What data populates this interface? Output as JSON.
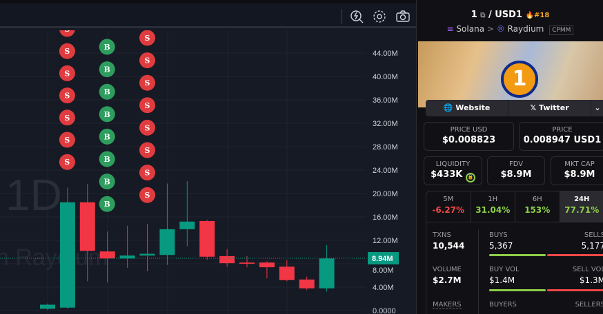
{
  "toolbar": {
    "icons": [
      "alert-search-icon",
      "gear-icon",
      "camera-icon"
    ]
  },
  "chart": {
    "watermark_interval": "1D",
    "watermark_source": "n Raydium",
    "y_ticks": [
      "44.00M",
      "40.00M",
      "36.00M",
      "32.00M",
      "28.00M",
      "24.00M",
      "20.00M",
      "16.00M",
      "12.00M",
      "8.00M",
      "4.00M",
      "0.0000"
    ],
    "current_price_label": "8.94M",
    "current_price": 8.94,
    "colors": {
      "up": "#089981",
      "down": "#f23645",
      "buy_marker": "#2e9e5e",
      "sell_marker": "#e03c3f",
      "background": "#161a25"
    }
  },
  "chart_data": {
    "type": "candlestick",
    "ylim": [
      0,
      46
    ],
    "candles": [
      {
        "o": 0.3,
        "h": 1.2,
        "l": 0.1,
        "c": 1.0
      },
      {
        "o": 0.5,
        "h": 21.0,
        "l": 0.3,
        "c": 18.5
      },
      {
        "o": 18.5,
        "h": 21.6,
        "l": 5.0,
        "c": 10.2
      },
      {
        "o": 10.1,
        "h": 13.5,
        "l": 4.8,
        "c": 8.9
      },
      {
        "o": 8.9,
        "h": 14.5,
        "l": 7.3,
        "c": 9.4
      },
      {
        "o": 9.4,
        "h": 14.8,
        "l": 6.7,
        "c": 9.7
      },
      {
        "o": 9.5,
        "h": 21.7,
        "l": 7.8,
        "c": 13.9
      },
      {
        "o": 13.9,
        "h": 22.1,
        "l": 11.0,
        "c": 15.2
      },
      {
        "o": 15.3,
        "h": 15.5,
        "l": 8.7,
        "c": 9.2
      },
      {
        "o": 9.3,
        "h": 10.5,
        "l": 7.5,
        "c": 8.1
      },
      {
        "o": 8.2,
        "h": 9.3,
        "l": 7.4,
        "c": 8.0
      },
      {
        "o": 8.2,
        "h": 8.4,
        "l": 5.5,
        "c": 7.4
      },
      {
        "o": 7.5,
        "h": 8.6,
        "l": 5.0,
        "c": 5.2
      },
      {
        "o": 5.3,
        "h": 5.8,
        "l": 3.5,
        "c": 3.8
      },
      {
        "o": 3.8,
        "h": 11.2,
        "l": 3.2,
        "c": 8.9
      }
    ],
    "markers": [
      {
        "candle": 1,
        "label": "S",
        "count": 7
      },
      {
        "candle": 3,
        "label": "B",
        "count": 8
      },
      {
        "candle": 5,
        "label": "S",
        "count": 8
      }
    ]
  },
  "pair": {
    "base": "1",
    "quote": "USD1",
    "sep": "/",
    "rank": "#18",
    "chain": "Solana",
    "dex": "Raydium",
    "pool_type": "CPMM",
    "chevron": ">",
    "coin_symbol": "1"
  },
  "links": {
    "website": "Website",
    "twitter": "Twitter"
  },
  "price": {
    "usd_label": "PRICE USD",
    "usd": "$0.008823",
    "native_label": "PRICE",
    "native": "0.008947 USD1"
  },
  "metrics": {
    "liquidity_label": "LIQUIDITY",
    "liquidity": "$433K",
    "fdv_label": "FDV",
    "fdv": "$8.9M",
    "mcap_label": "MKT CAP",
    "mcap": "$8.9M"
  },
  "tabs": [
    {
      "label": "5M",
      "value": "-6.27%",
      "color": "#f04848"
    },
    {
      "label": "1H",
      "value": "31.04%",
      "color": "#8fcf4a"
    },
    {
      "label": "6H",
      "value": "153%",
      "color": "#8fcf4a"
    },
    {
      "label": "24H",
      "value": "77.71%",
      "color": "#8fcf4a",
      "active": true
    }
  ],
  "stats": {
    "txns_label": "TXNS",
    "txns": "10,544",
    "buys_label": "BUYS",
    "buys": "5,367",
    "sells_label": "SELLS",
    "sells": "5,177",
    "buys_ratio": 0.509,
    "volume_label": "VOLUME",
    "volume": "$2.7M",
    "buy_vol_label": "BUY VOL",
    "buy_vol": "$1.4M",
    "sell_vol_label": "SELL VOL",
    "sell_vol": "$1.3M",
    "vol_ratio": 0.51,
    "makers_label": "MAKERS",
    "buyers_label": "BUYERS",
    "sellers_label": "SELLERS"
  }
}
